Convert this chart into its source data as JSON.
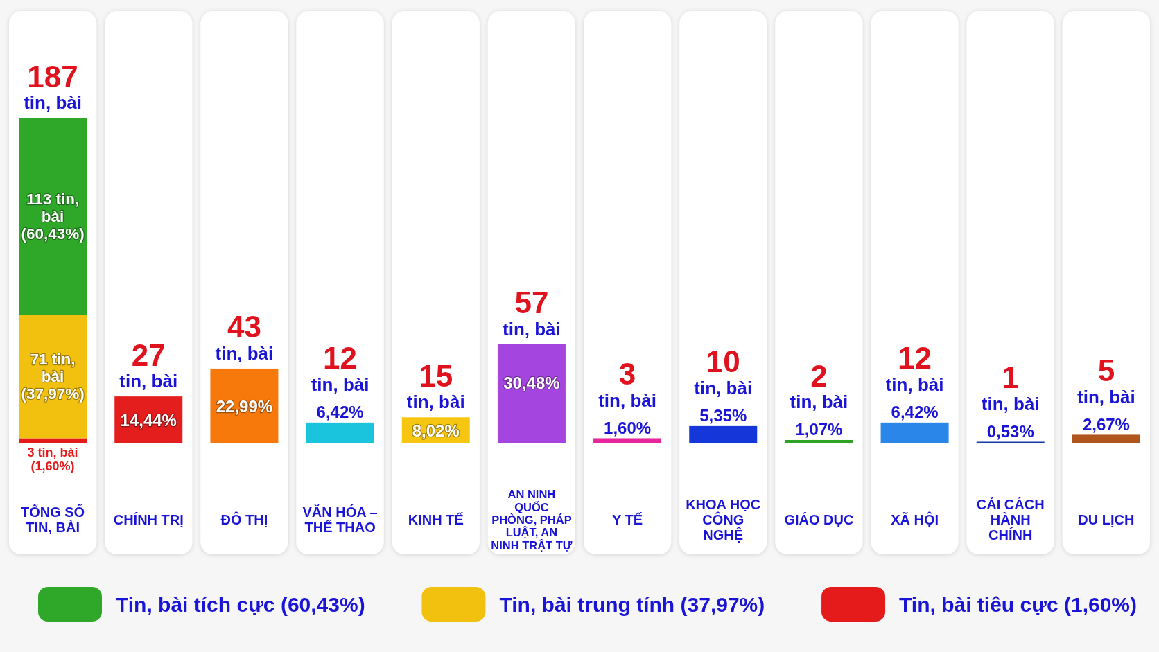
{
  "chart_data": {
    "type": "bar",
    "categories": [
      "TỔNG SỐ TIN, BÀI",
      "CHÍNH TRỊ",
      "ĐÔ THỊ",
      "VĂN HÓA – THỂ THAO",
      "KINH TẾ",
      "AN NINH QUỐC PHÒNG, PHÁP LUẬT, AN NINH TRẬT TỰ",
      "Y TẾ",
      "KHOA HỌC CÔNG NGHỆ",
      "GIÁO DỤC",
      "XÃ HỘI",
      "CẢI CÁCH HÀNH CHÍNH",
      "DU LỊCH"
    ],
    "stacked": true,
    "series": [
      {
        "name": "Tin, bài tiêu cực (1,60%)",
        "color": "#e51b1b",
        "values": [
          3,
          null,
          null,
          null,
          null,
          null,
          null,
          null,
          null,
          null,
          null,
          null
        ],
        "value_labels": [
          "3 tin, bài (1,60%)",
          null,
          null,
          null,
          null,
          null,
          null,
          null,
          null,
          null,
          null,
          null
        ]
      },
      {
        "name": "Tin, bài trung tính (37,97%)",
        "color": "#f2c00e",
        "values": [
          71,
          null,
          null,
          null,
          null,
          null,
          null,
          null,
          null,
          null,
          null,
          null
        ],
        "value_labels": [
          "71 tin, bài (37,97%)",
          null,
          null,
          null,
          null,
          null,
          null,
          null,
          null,
          null,
          null,
          null
        ]
      },
      {
        "name": "Tin, bài tích cực (60,43%)",
        "color": "#2fa829",
        "values": [
          113,
          null,
          null,
          null,
          null,
          null,
          null,
          null,
          null,
          null,
          null,
          null
        ],
        "value_labels": [
          "113 tin, bài (60,43%)",
          null,
          null,
          null,
          null,
          null,
          null,
          null,
          null,
          null,
          null,
          null
        ]
      },
      {
        "colors": [
          null,
          "#e41d1d",
          "#f7790c",
          "#19c4dc",
          "#f6c610",
          "#a545e0",
          "#e8269c",
          "#1536d8",
          "#2fa326",
          "#2a86e8",
          "#1a3aa8",
          "#b0551c"
        ],
        "values": [
          null,
          27,
          43,
          12,
          15,
          57,
          3,
          10,
          2,
          12,
          1,
          5
        ]
      }
    ],
    "totals": [
      "187 tin, bài",
      "27 tin, bài",
      "43 tin, bài",
      "12 tin, bài",
      "15 tin, bài",
      "57 tin, bài",
      "3 tin, bài",
      "10 tin, bài",
      "2 tin, bài",
      "12 tin, bài",
      "1 tin, bài",
      "5 tin, bài"
    ],
    "annotations": [
      {
        "text": "14,44%",
        "x": "CHÍNH TRỊ",
        "y": 27
      },
      {
        "text": "22,99%",
        "x": "ĐÔ THỊ",
        "y": 43
      },
      {
        "text": "6,42%",
        "x": "VĂN HÓA – THỂ THAO",
        "y": 12
      },
      {
        "text": "8,02%",
        "x": "KINH TẾ",
        "y": 15
      },
      {
        "text": "30,48%",
        "x": "AN NINH QUỐC PHÒNG, PHÁP LUẬT, AN NINH TRẬT TỰ",
        "y": 57
      },
      {
        "text": "1,60%",
        "x": "Y TẾ",
        "y": 3
      },
      {
        "text": "5,35%",
        "x": "KHOA HỌC CÔNG NGHỆ",
        "y": 10
      },
      {
        "text": "1,07%",
        "x": "GIÁO DỤC",
        "y": 2
      },
      {
        "text": "6,42%",
        "x": "XÃ HỘI",
        "y": 12
      },
      {
        "text": "0,53%",
        "x": "CẢI CÁCH HÀNH CHÍNH",
        "y": 1
      },
      {
        "text": "2,67%",
        "x": "DU LỊCH",
        "y": 5
      }
    ],
    "legend": "bottom"
  }
}
